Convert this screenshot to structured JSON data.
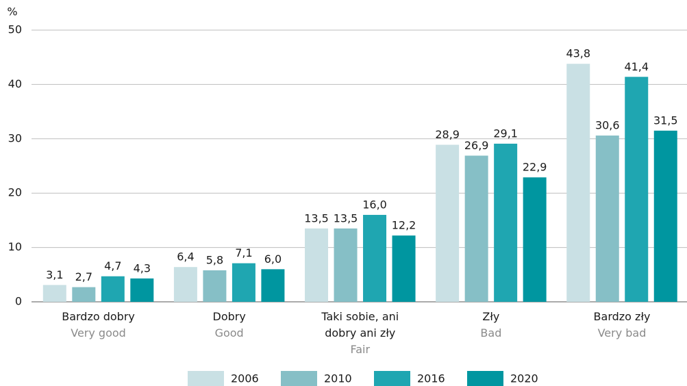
{
  "chart_data": {
    "type": "bar",
    "ylabel": "%",
    "categories": [
      "Bardzo dobry",
      "Dobry",
      "Taki sobie, ani dobry ani zły",
      "Zły",
      "Bardzo zły"
    ],
    "categories_en": [
      "Very good",
      "Good",
      "Fair",
      "Bad",
      "Very bad"
    ],
    "series": [
      {
        "name": "2006",
        "color": "#c9e0e4",
        "values": [
          3.1,
          6.4,
          13.5,
          28.9,
          43.8
        ],
        "value_labels": [
          "3,1",
          "6,4",
          "13,5",
          "28,9",
          "43,8"
        ]
      },
      {
        "name": "2010",
        "color": "#86bfc6",
        "values": [
          2.7,
          5.8,
          13.5,
          26.9,
          30.6
        ],
        "value_labels": [
          "2,7",
          "5,8",
          "13,5",
          "26,9",
          "30,6"
        ]
      },
      {
        "name": "2016",
        "color": "#1fa6b1",
        "values": [
          4.7,
          7.1,
          16.0,
          29.1,
          41.4
        ],
        "value_labels": [
          "4,7",
          "7,1",
          "16,0",
          "29,1",
          "41,4"
        ]
      },
      {
        "name": "2020",
        "color": "#0096a0",
        "values": [
          4.3,
          6.0,
          12.2,
          22.9,
          31.5
        ],
        "value_labels": [
          "4,3",
          "6,0",
          "12,2",
          "22,9",
          "31,5"
        ]
      }
    ],
    "ylim": [
      0,
      50
    ],
    "yticks": [
      0,
      10,
      20,
      30,
      40,
      50
    ],
    "grid": true,
    "legend": "bottom"
  }
}
